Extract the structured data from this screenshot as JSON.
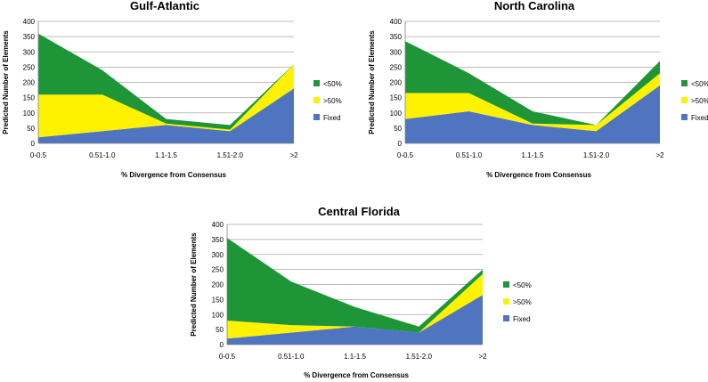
{
  "chart_data": [
    {
      "type": "area",
      "stacked": true,
      "title": "Gulf-Atlantic",
      "xlabel": "% Divergence from Consensus",
      "ylabel": "Predicted Number of Elements",
      "categories": [
        "0-0.5",
        "0.51-1.0",
        "1.1-1.5",
        "1.51-2.0",
        ">2"
      ],
      "ylim": [
        0,
        400
      ],
      "yticks": [
        0,
        50,
        100,
        150,
        200,
        250,
        300,
        350,
        400
      ],
      "grid": true,
      "legend_position": "right",
      "series": [
        {
          "name": "Fixed",
          "values": [
            20,
            40,
            60,
            40,
            180
          ]
        },
        {
          "name": ">50%",
          "values": [
            140,
            120,
            5,
            5,
            80
          ]
        },
        {
          "name": "<50%",
          "values": [
            200,
            80,
            15,
            15,
            0
          ]
        }
      ]
    },
    {
      "type": "area",
      "stacked": true,
      "title": "North Carolina",
      "xlabel": "% Divergence from Consensus",
      "ylabel": "Predicted Number of Elements",
      "categories": [
        "0-0.5",
        "0.51-1.0",
        "1.1-1.5",
        "1.51-2.0",
        ">2"
      ],
      "ylim": [
        0,
        400
      ],
      "yticks": [
        0,
        50,
        100,
        150,
        200,
        250,
        300,
        350,
        400
      ],
      "grid": true,
      "legend_position": "right",
      "series": [
        {
          "name": "Fixed",
          "values": [
            80,
            105,
            60,
            40,
            190
          ]
        },
        {
          "name": ">50%",
          "values": [
            85,
            60,
            5,
            20,
            40
          ]
        },
        {
          "name": "<50%",
          "values": [
            170,
            65,
            40,
            0,
            40
          ]
        }
      ]
    },
    {
      "type": "area",
      "stacked": true,
      "title": "Central Florida",
      "xlabel": "% Divergence from Consensus",
      "ylabel": "Predicted Number of Elements",
      "categories": [
        "0-0.5",
        "0.51-1.0",
        "1.1-1.5",
        "1.51-2.0",
        ">2"
      ],
      "ylim": [
        0,
        400
      ],
      "yticks": [
        0,
        50,
        100,
        150,
        200,
        250,
        300,
        350,
        400
      ],
      "grid": true,
      "legend_position": "right",
      "series": [
        {
          "name": "Fixed",
          "values": [
            20,
            40,
            60,
            40,
            165
          ]
        },
        {
          "name": ">50%",
          "values": [
            60,
            25,
            0,
            0,
            70
          ]
        },
        {
          "name": "<50%",
          "values": [
            275,
            145,
            65,
            20,
            15
          ]
        }
      ]
    }
  ],
  "colors": {
    "Fixed": "#4F75C0",
    ">50%": "#FFF200",
    "<50%": "#1E9637",
    "grid": "#A6A6A6",
    "axis": "#808080"
  },
  "legend_order": [
    "<50%",
    ">50%",
    "Fixed"
  ]
}
